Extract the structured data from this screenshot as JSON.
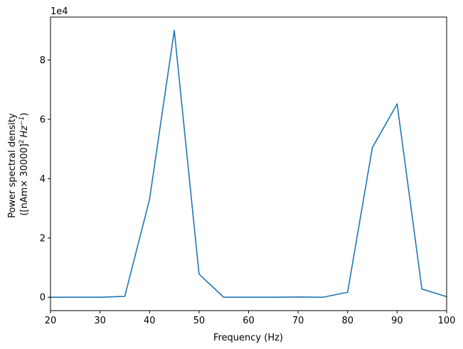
{
  "chart_data": {
    "type": "line",
    "x": [
      20,
      25,
      30,
      35,
      40,
      45,
      50,
      55,
      60,
      65,
      70,
      75,
      80,
      85,
      90,
      95,
      100
    ],
    "series": [
      {
        "values": [
          0,
          0,
          0,
          300,
          33000,
          90000,
          7800,
          0,
          0,
          0,
          100,
          0,
          1700,
          50500,
          65200,
          2800,
          200
        ],
        "color": "#1f77b4"
      }
    ],
    "xlabel": "Frequency (Hz)",
    "ylabel": {
      "line1": "Power spectral density",
      "line2_prefix": "([nAm× 30000]",
      "line2_sup1": "2",
      "line2_unit": "Hz",
      "line2_sup2": "−1",
      "line2_suffix": ")"
    },
    "xlim": [
      20,
      100
    ],
    "ylim": [
      -4500,
      94500
    ],
    "xticks": [
      20,
      30,
      40,
      50,
      60,
      70,
      80,
      90,
      100
    ],
    "yticks": [
      0,
      20000,
      40000,
      60000,
      80000
    ],
    "ytick_labels": [
      "0",
      "2",
      "4",
      "6",
      "8"
    ],
    "y_offset_label": "1e4",
    "grid": false
  }
}
